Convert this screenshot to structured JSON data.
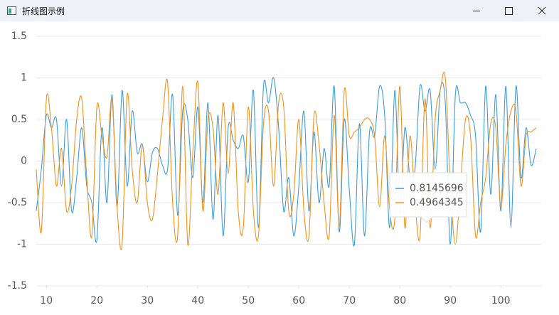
{
  "window": {
    "title": "折线图示例"
  },
  "chart_data": {
    "type": "line",
    "x": [
      8,
      9,
      10,
      11,
      12,
      13,
      14,
      15,
      16,
      17,
      18,
      19,
      20,
      21,
      22,
      23,
      24,
      25,
      26,
      27,
      28,
      29,
      30,
      31,
      32,
      33,
      34,
      35,
      36,
      37,
      38,
      39,
      40,
      41,
      42,
      43,
      44,
      45,
      46,
      47,
      48,
      49,
      50,
      51,
      52,
      53,
      54,
      55,
      56,
      57,
      58,
      59,
      60,
      61,
      62,
      63,
      64,
      65,
      66,
      67,
      68,
      69,
      70,
      71,
      72,
      73,
      74,
      75,
      76,
      77,
      78,
      79,
      80,
      81,
      82,
      83,
      84,
      85,
      86,
      87,
      88,
      89,
      90,
      91,
      92,
      93,
      94,
      95,
      96,
      97,
      98,
      99,
      100,
      101,
      102,
      103,
      104,
      105,
      106,
      107
    ],
    "series": [
      {
        "color": "#3d9ddb",
        "values": [
          -0.6,
          -0.1,
          0.55,
          0.4,
          0.5,
          -0.3,
          0.5,
          -0.6,
          -0.2,
          0.4,
          -0.3,
          -0.5,
          -0.95,
          0.4,
          -0.5,
          0.8,
          -0.55,
          0.85,
          -0.3,
          0.6,
          0.1,
          0.2,
          -0.25,
          0.1,
          0.15,
          -0.05,
          -0.1,
          0.8,
          -0.65,
          0.6,
          0.5,
          -0.2,
          0.65,
          -0.5,
          0.7,
          -0.7,
          0.55,
          -0.9,
          0.4,
          0.25,
          0.15,
          0.3,
          -0.25,
          0.85,
          -0.8,
          0.9,
          0.7,
          1.0,
          0.4,
          -0.6,
          -0.2,
          -0.9,
          -0.3,
          0.6,
          -0.6,
          0.35,
          -0.5,
          0.15,
          -0.3,
          0.9,
          -0.85,
          0.5,
          -0.35,
          -1.0,
          0.45,
          -0.9,
          0.35,
          0.3,
          0.9,
          0.55,
          -0.8,
          0.85,
          -0.6,
          0.4,
          -0.2,
          -0.1,
          0.9,
          0.6,
          0.85,
          -0.1,
          0.85,
          0.7,
          -1.0,
          0.8,
          0.7,
          0.7,
          0.55,
          0.3,
          -0.85,
          0.9,
          -0.4,
          0.8,
          -0.6,
          0.9,
          -0.8,
          0.9,
          -0.2,
          0.4,
          -0.05,
          0.15
        ]
      },
      {
        "color": "#f0921e",
        "values": [
          -0.1,
          -0.85,
          0.75,
          0.4,
          -0.3,
          0.15,
          -0.6,
          -0.3,
          0.5,
          0.75,
          -0.2,
          -0.9,
          0.65,
          0.3,
          0.05,
          0.75,
          -0.55,
          -1.0,
          0.8,
          -0.1,
          -0.5,
          0.2,
          -0.5,
          -0.7,
          -0.15,
          0.5,
          0.95,
          -0.5,
          -0.9,
          0.9,
          -1.0,
          0.1,
          0.95,
          -0.6,
          0.5,
          0.4,
          -0.4,
          0.7,
          -0.15,
          0.7,
          -0.6,
          -0.8,
          0.65,
          -0.6,
          -0.9,
          0.45,
          0.6,
          -0.3,
          0.7,
          0.65,
          -0.6,
          -0.4,
          0.5,
          -0.6,
          -0.9,
          0.55,
          0.2,
          -0.5,
          -0.9,
          0.55,
          -0.8,
          0.85,
          0.3,
          0.35,
          0.4,
          0.5,
          0.5,
          0.3,
          -0.55,
          0.3,
          -0.6,
          -0.7,
          0.9,
          -0.8,
          0.3,
          -0.5,
          -0.9,
          0.75,
          -0.8,
          0.5,
          0.85,
          1.0,
          -0.3,
          -1.0,
          -0.3,
          0.5,
          0.3,
          -0.9,
          -0.5,
          -0.2,
          0.45,
          0.4,
          -0.55,
          0.2,
          0.6,
          0.6,
          -0.3,
          0.3,
          0.35,
          0.4
        ]
      }
    ],
    "xlim": [
      8,
      108
    ],
    "xticks": [
      10,
      20,
      30,
      40,
      50,
      60,
      70,
      80,
      90,
      100
    ],
    "ylim": [
      -1.5,
      1.5
    ],
    "yticks": [
      -1.5,
      -1,
      -0.5,
      0,
      0.5,
      1,
      1.5
    ],
    "grid": true,
    "tooltip": {
      "values": [
        0.8145696,
        0.4964345
      ]
    }
  }
}
